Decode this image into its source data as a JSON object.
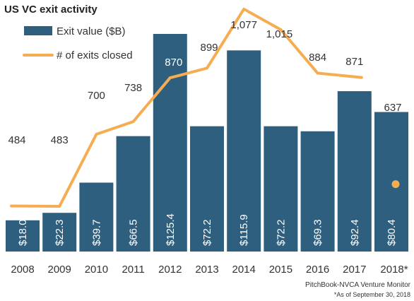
{
  "chart_data": {
    "type": "bar",
    "title": "US VC exit activity",
    "categories": [
      "2008",
      "2009",
      "2010",
      "2011",
      "2012",
      "2013",
      "2014",
      "2015",
      "2016",
      "2017",
      "2018*"
    ],
    "series": [
      {
        "name": "Exit value ($B)",
        "type": "bar",
        "axis": "left",
        "values": [
          18.0,
          22.3,
          39.7,
          66.5,
          125.4,
          72.2,
          115.9,
          72.2,
          69.3,
          92.4,
          80.4
        ],
        "labels": [
          "$18.0",
          "$22.3",
          "$39.7",
          "$66.5",
          "$125.4",
          "$72.2",
          "$115.9",
          "$72.2",
          "$69.3",
          "$92.4",
          "$80.4"
        ]
      },
      {
        "name": "# of exits closed",
        "type": "line",
        "axis": "right",
        "values": [
          484,
          483,
          700,
          738,
          870,
          899,
          1077,
          1015,
          884,
          871,
          637
        ],
        "labels": [
          "484",
          "483",
          "700",
          "738",
          "870",
          "899",
          "1,077",
          "1,015",
          "884",
          "871",
          "637"
        ]
      }
    ],
    "bar_ylim": [
      0,
      130
    ],
    "line_ylim": [
      0,
      1400
    ],
    "legend": "top-left",
    "grid": false,
    "xlabel": "",
    "ylabel": "",
    "colors": {
      "bar": "#2f5f7f",
      "line": "#f6ad52"
    }
  },
  "footer": {
    "source": "PitchBook-NVCA Venture Monitor",
    "note": "*As of September 30, 2018"
  }
}
